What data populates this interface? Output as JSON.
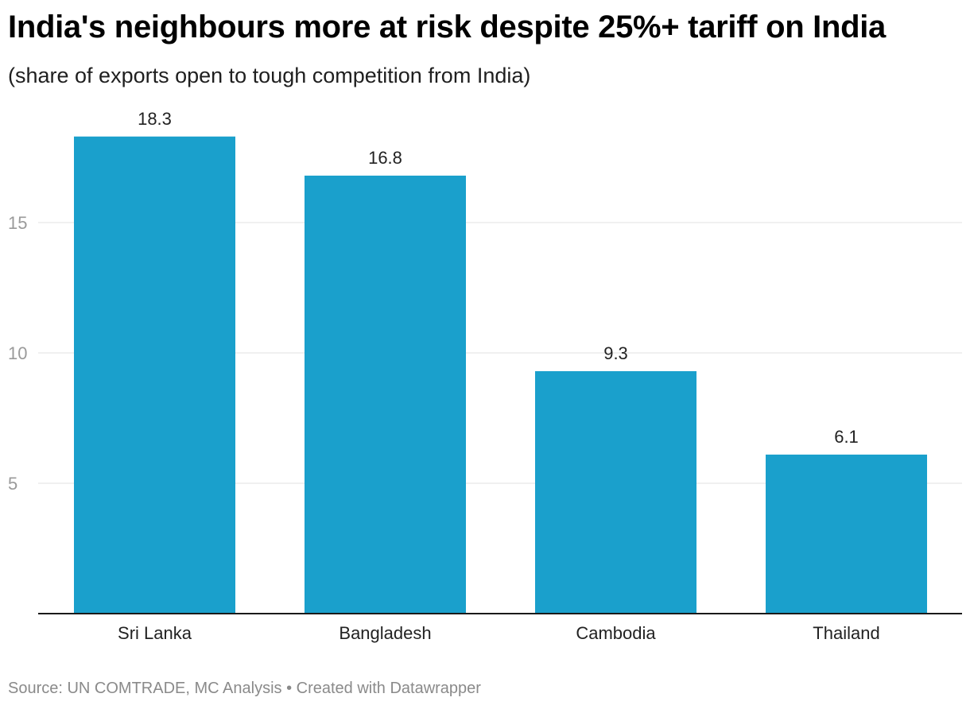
{
  "header": {
    "title": "India's neighbours more at risk despite 25%+ tariff on India",
    "subtitle": "(share of exports open to tough competition from India)"
  },
  "footer": {
    "source": "Source: UN COMTRADE, MC Analysis • Created with Datawrapper"
  },
  "colors": {
    "bar": "#1aa0cc",
    "grid": "#e0e0e0",
    "axis": "#1a1a1a",
    "tick_label": "#9a9a9a",
    "data_label": "#222222",
    "category_label": "#222222"
  },
  "chart_data": {
    "type": "bar",
    "categories": [
      "Sri Lanka",
      "Bangladesh",
      "Cambodia",
      "Thailand"
    ],
    "values": [
      18.3,
      16.8,
      9.3,
      6.1
    ],
    "data_labels": [
      "18.3",
      "16.8",
      "9.3",
      "6.1"
    ],
    "yticks": [
      5,
      10,
      15
    ],
    "ylim": [
      0,
      20
    ],
    "grid": true,
    "legend": false
  }
}
